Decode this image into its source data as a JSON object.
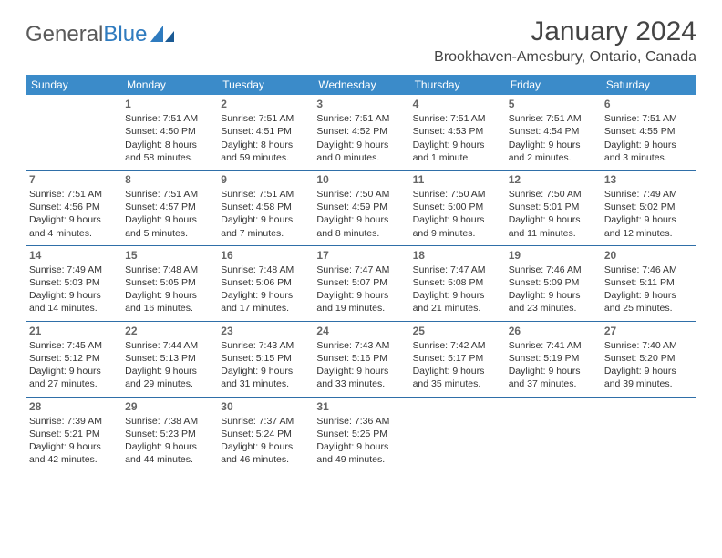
{
  "logo": {
    "text1": "General",
    "text2": "Blue"
  },
  "title": "January 2024",
  "location": "Brookhaven-Amesbury, Ontario, Canada",
  "colors": {
    "header_bg": "#3b8bc9",
    "header_text": "#ffffff",
    "row_border": "#2f6fa8",
    "text": "#333333",
    "daynum": "#666666",
    "logo_gray": "#5a5a5a",
    "logo_blue": "#2f7bbf",
    "background": "#ffffff"
  },
  "weekdays": [
    "Sunday",
    "Monday",
    "Tuesday",
    "Wednesday",
    "Thursday",
    "Friday",
    "Saturday"
  ],
  "weeks": [
    [
      {
        "day": "",
        "lines": []
      },
      {
        "day": "1",
        "lines": [
          "Sunrise: 7:51 AM",
          "Sunset: 4:50 PM",
          "Daylight: 8 hours and 58 minutes."
        ]
      },
      {
        "day": "2",
        "lines": [
          "Sunrise: 7:51 AM",
          "Sunset: 4:51 PM",
          "Daylight: 8 hours and 59 minutes."
        ]
      },
      {
        "day": "3",
        "lines": [
          "Sunrise: 7:51 AM",
          "Sunset: 4:52 PM",
          "Daylight: 9 hours and 0 minutes."
        ]
      },
      {
        "day": "4",
        "lines": [
          "Sunrise: 7:51 AM",
          "Sunset: 4:53 PM",
          "Daylight: 9 hours and 1 minute."
        ]
      },
      {
        "day": "5",
        "lines": [
          "Sunrise: 7:51 AM",
          "Sunset: 4:54 PM",
          "Daylight: 9 hours and 2 minutes."
        ]
      },
      {
        "day": "6",
        "lines": [
          "Sunrise: 7:51 AM",
          "Sunset: 4:55 PM",
          "Daylight: 9 hours and 3 minutes."
        ]
      }
    ],
    [
      {
        "day": "7",
        "lines": [
          "Sunrise: 7:51 AM",
          "Sunset: 4:56 PM",
          "Daylight: 9 hours and 4 minutes."
        ]
      },
      {
        "day": "8",
        "lines": [
          "Sunrise: 7:51 AM",
          "Sunset: 4:57 PM",
          "Daylight: 9 hours and 5 minutes."
        ]
      },
      {
        "day": "9",
        "lines": [
          "Sunrise: 7:51 AM",
          "Sunset: 4:58 PM",
          "Daylight: 9 hours and 7 minutes."
        ]
      },
      {
        "day": "10",
        "lines": [
          "Sunrise: 7:50 AM",
          "Sunset: 4:59 PM",
          "Daylight: 9 hours and 8 minutes."
        ]
      },
      {
        "day": "11",
        "lines": [
          "Sunrise: 7:50 AM",
          "Sunset: 5:00 PM",
          "Daylight: 9 hours and 9 minutes."
        ]
      },
      {
        "day": "12",
        "lines": [
          "Sunrise: 7:50 AM",
          "Sunset: 5:01 PM",
          "Daylight: 9 hours and 11 minutes."
        ]
      },
      {
        "day": "13",
        "lines": [
          "Sunrise: 7:49 AM",
          "Sunset: 5:02 PM",
          "Daylight: 9 hours and 12 minutes."
        ]
      }
    ],
    [
      {
        "day": "14",
        "lines": [
          "Sunrise: 7:49 AM",
          "Sunset: 5:03 PM",
          "Daylight: 9 hours and 14 minutes."
        ]
      },
      {
        "day": "15",
        "lines": [
          "Sunrise: 7:48 AM",
          "Sunset: 5:05 PM",
          "Daylight: 9 hours and 16 minutes."
        ]
      },
      {
        "day": "16",
        "lines": [
          "Sunrise: 7:48 AM",
          "Sunset: 5:06 PM",
          "Daylight: 9 hours and 17 minutes."
        ]
      },
      {
        "day": "17",
        "lines": [
          "Sunrise: 7:47 AM",
          "Sunset: 5:07 PM",
          "Daylight: 9 hours and 19 minutes."
        ]
      },
      {
        "day": "18",
        "lines": [
          "Sunrise: 7:47 AM",
          "Sunset: 5:08 PM",
          "Daylight: 9 hours and 21 minutes."
        ]
      },
      {
        "day": "19",
        "lines": [
          "Sunrise: 7:46 AM",
          "Sunset: 5:09 PM",
          "Daylight: 9 hours and 23 minutes."
        ]
      },
      {
        "day": "20",
        "lines": [
          "Sunrise: 7:46 AM",
          "Sunset: 5:11 PM",
          "Daylight: 9 hours and 25 minutes."
        ]
      }
    ],
    [
      {
        "day": "21",
        "lines": [
          "Sunrise: 7:45 AM",
          "Sunset: 5:12 PM",
          "Daylight: 9 hours and 27 minutes."
        ]
      },
      {
        "day": "22",
        "lines": [
          "Sunrise: 7:44 AM",
          "Sunset: 5:13 PM",
          "Daylight: 9 hours and 29 minutes."
        ]
      },
      {
        "day": "23",
        "lines": [
          "Sunrise: 7:43 AM",
          "Sunset: 5:15 PM",
          "Daylight: 9 hours and 31 minutes."
        ]
      },
      {
        "day": "24",
        "lines": [
          "Sunrise: 7:43 AM",
          "Sunset: 5:16 PM",
          "Daylight: 9 hours and 33 minutes."
        ]
      },
      {
        "day": "25",
        "lines": [
          "Sunrise: 7:42 AM",
          "Sunset: 5:17 PM",
          "Daylight: 9 hours and 35 minutes."
        ]
      },
      {
        "day": "26",
        "lines": [
          "Sunrise: 7:41 AM",
          "Sunset: 5:19 PM",
          "Daylight: 9 hours and 37 minutes."
        ]
      },
      {
        "day": "27",
        "lines": [
          "Sunrise: 7:40 AM",
          "Sunset: 5:20 PM",
          "Daylight: 9 hours and 39 minutes."
        ]
      }
    ],
    [
      {
        "day": "28",
        "lines": [
          "Sunrise: 7:39 AM",
          "Sunset: 5:21 PM",
          "Daylight: 9 hours and 42 minutes."
        ]
      },
      {
        "day": "29",
        "lines": [
          "Sunrise: 7:38 AM",
          "Sunset: 5:23 PM",
          "Daylight: 9 hours and 44 minutes."
        ]
      },
      {
        "day": "30",
        "lines": [
          "Sunrise: 7:37 AM",
          "Sunset: 5:24 PM",
          "Daylight: 9 hours and 46 minutes."
        ]
      },
      {
        "day": "31",
        "lines": [
          "Sunrise: 7:36 AM",
          "Sunset: 5:25 PM",
          "Daylight: 9 hours and 49 minutes."
        ]
      },
      {
        "day": "",
        "lines": []
      },
      {
        "day": "",
        "lines": []
      },
      {
        "day": "",
        "lines": []
      }
    ]
  ]
}
